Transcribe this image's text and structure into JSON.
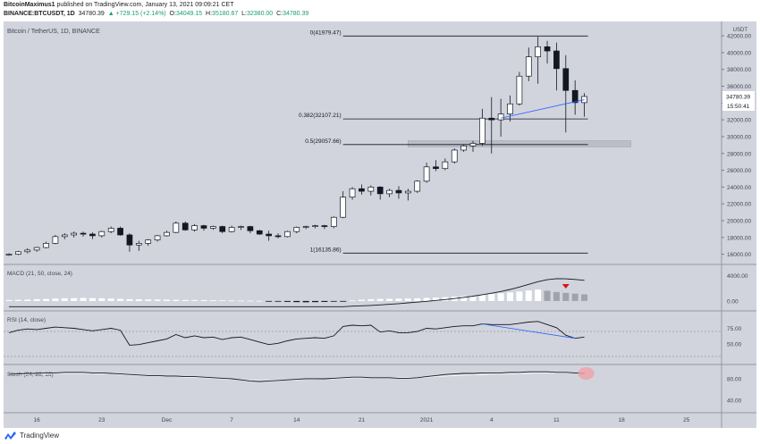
{
  "header": {
    "author": "BitcoinMaximus1",
    "published": "published on TradingView.com, January 13, 2021 09:09:21 CET",
    "symbol": "BINANCE:BTCUSDT, 1D",
    "last": "34780.39",
    "change": "▲ +729.15 (+2.14%)",
    "ohlc": [
      {
        "label": "O:",
        "value": "34049.15"
      },
      {
        "label": "H:",
        "value": "35180.67"
      },
      {
        "label": "L:",
        "value": "32380.00"
      },
      {
        "label": "C:",
        "value": "34780.39"
      }
    ]
  },
  "footer": {
    "brand": "TradingView"
  },
  "colors": {
    "background": "#d1d4dc",
    "accent": "#2962ff",
    "text": "#131722",
    "down_arrow": "#e01010",
    "highlight": "#f0a0a8"
  },
  "chart_data": {
    "type": "candlestick",
    "title": "Bitcoin / TetherUS, 1D, BINANCE",
    "currency": "USDT",
    "price_axis": {
      "range": [
        15000,
        43500
      ],
      "ticks": [
        16000,
        18000,
        20000,
        22000,
        24000,
        26000,
        28000,
        30000,
        32000,
        34000,
        36000,
        38000,
        40000,
        42000
      ],
      "tick_labels": [
        "16000.00",
        "18000.00",
        "20000.00",
        "22000.00",
        "24000.00",
        "26000.00",
        "28000.00",
        "30000.00",
        "32000.00",
        "34000.00",
        "36000.00",
        "38000.00",
        "40000.00",
        "42000.00"
      ],
      "last_price_label": "34780.39",
      "countdown": "15:50:41"
    },
    "x_axis": {
      "labels": [
        "16",
        "23",
        "Dec",
        "7",
        "14",
        "21",
        "2021",
        "4",
        "11",
        "18",
        "25"
      ],
      "label_bars": [
        3,
        10,
        17,
        24,
        31,
        38,
        45,
        52,
        59,
        66,
        73
      ]
    },
    "candles": [
      [
        15900,
        16100,
        15800,
        16000
      ],
      [
        16000,
        16400,
        15900,
        16300
      ],
      [
        16300,
        16700,
        16100,
        16500
      ],
      [
        16500,
        16900,
        16300,
        16800
      ],
      [
        16800,
        17500,
        16700,
        17300
      ],
      [
        17300,
        18300,
        17200,
        18100
      ],
      [
        18100,
        18500,
        17800,
        18300
      ],
      [
        18300,
        18700,
        18000,
        18500
      ],
      [
        18500,
        18700,
        18100,
        18400
      ],
      [
        18400,
        18600,
        17800,
        18200
      ],
      [
        18200,
        18800,
        18000,
        18700
      ],
      [
        18700,
        19300,
        18500,
        19100
      ],
      [
        19100,
        19300,
        18200,
        18300
      ],
      [
        18300,
        18500,
        16300,
        17100
      ],
      [
        17100,
        17600,
        16400,
        17300
      ],
      [
        17300,
        17800,
        17000,
        17700
      ],
      [
        17700,
        18300,
        17500,
        18200
      ],
      [
        18200,
        18800,
        18100,
        18600
      ],
      [
        18600,
        19900,
        18500,
        19700
      ],
      [
        19700,
        19900,
        18800,
        18900
      ],
      [
        18900,
        19600,
        18700,
        19400
      ],
      [
        19400,
        19500,
        18800,
        19100
      ],
      [
        19100,
        19400,
        18900,
        19300
      ],
      [
        19300,
        19400,
        18500,
        18700
      ],
      [
        18700,
        19400,
        18600,
        19200
      ],
      [
        19200,
        19400,
        18900,
        19300
      ],
      [
        19300,
        19400,
        18500,
        18800
      ],
      [
        18800,
        18900,
        18300,
        18400
      ],
      [
        18400,
        18800,
        17600,
        18200
      ],
      [
        18200,
        18500,
        17900,
        18100
      ],
      [
        18100,
        18800,
        18000,
        18700
      ],
      [
        18700,
        19300,
        18500,
        19200
      ],
      [
        19200,
        19400,
        19000,
        19300
      ],
      [
        19300,
        19500,
        19100,
        19400
      ],
      [
        19400,
        19500,
        19000,
        19300
      ],
      [
        19300,
        20500,
        19100,
        20400
      ],
      [
        20400,
        23500,
        20300,
        22800
      ],
      [
        22800,
        24000,
        22500,
        23800
      ],
      [
        23800,
        24300,
        23100,
        23500
      ],
      [
        23500,
        24200,
        23000,
        24000
      ],
      [
        24000,
        24100,
        22500,
        23200
      ],
      [
        23200,
        23800,
        22800,
        23600
      ],
      [
        23600,
        24100,
        22600,
        23300
      ],
      [
        23300,
        23800,
        22400,
        23500
      ],
      [
        23500,
        24800,
        23300,
        24700
      ],
      [
        24700,
        26900,
        24500,
        26400
      ],
      [
        26400,
        27200,
        25900,
        26200
      ],
      [
        26200,
        27400,
        26000,
        27000
      ],
      [
        27000,
        28600,
        26800,
        28400
      ],
      [
        28400,
        29100,
        28200,
        28900
      ],
      [
        28900,
        29500,
        28200,
        29200
      ],
      [
        29200,
        33300,
        28900,
        32200
      ],
      [
        32200,
        34700,
        28000,
        32000
      ],
      [
        32000,
        34500,
        30000,
        32700
      ],
      [
        32700,
        34900,
        31800,
        33900
      ],
      [
        33900,
        37700,
        33700,
        37200
      ],
      [
        37200,
        40600,
        36600,
        39500
      ],
      [
        39500,
        41900,
        36300,
        40700
      ],
      [
        40700,
        41400,
        38700,
        40200
      ],
      [
        40200,
        41200,
        35500,
        38100
      ],
      [
        38100,
        39700,
        30500,
        35500
      ],
      [
        35500,
        36700,
        32600,
        34050
      ],
      [
        34050,
        35180,
        32380,
        34780
      ]
    ],
    "fibonacci": [
      {
        "label": "0(41979.47)",
        "price": 41979.47
      },
      {
        "label": "0.382(32107.21)",
        "price": 32107.21
      },
      {
        "label": "0.5(29057.66)",
        "price": 29057.66
      },
      {
        "label": "1(16135.86)",
        "price": 16135.86
      }
    ],
    "support_zone": [
      28800,
      29500
    ],
    "trendline": [
      {
        "bar": 53,
        "price": 32200
      },
      {
        "bar": 62,
        "price": 34400
      }
    ],
    "macd": {
      "title": "MACD (21, 50, close, 24)",
      "ticks": [
        0,
        4000
      ],
      "tick_labels": [
        "0.00",
        "4000.00"
      ],
      "line": [
        -900,
        -900,
        -900,
        -900,
        -900,
        -900,
        -900,
        -900,
        -900,
        -900,
        -900,
        -900,
        -900,
        -900,
        -900,
        -900,
        -900,
        -900,
        -900,
        -900,
        -900,
        -900,
        -900,
        -900,
        -900,
        -900,
        -900,
        -900,
        -900,
        -900,
        -900,
        -900,
        -900,
        -900,
        -900,
        -900,
        -900,
        -820,
        -760,
        -700,
        -620,
        -520,
        -420,
        -300,
        -180,
        -50,
        80,
        220,
        380,
        560,
        760,
        980,
        1220,
        1500,
        1820,
        2200,
        2620,
        3040,
        3360,
        3520,
        3500,
        3400,
        3250
      ],
      "histogram": [
        150,
        180,
        220,
        280,
        320,
        380,
        420,
        450,
        480,
        450,
        420,
        380,
        330,
        280,
        260,
        240,
        220,
        200,
        180,
        160,
        150,
        140,
        120,
        100,
        80,
        60,
        40,
        20,
        -40,
        -90,
        -140,
        -180,
        -200,
        -180,
        -150,
        -100,
        -40,
        80,
        200,
        280,
        320,
        340,
        360,
        380,
        420,
        480,
        540,
        600,
        680,
        760,
        860,
        980,
        1100,
        1220,
        1360,
        1500,
        1660,
        1800,
        1600,
        1420,
        1280,
        1160,
        1040
      ],
      "signal_arrow": "down"
    },
    "rsi": {
      "title": "RSI (14, close)",
      "ticks": [
        50,
        75
      ],
      "tick_labels": [
        "50.00",
        "75.00"
      ],
      "values": [
        68,
        72,
        74,
        73,
        75,
        77,
        76,
        75,
        73,
        71,
        73,
        75,
        72,
        48,
        49,
        52,
        55,
        58,
        65,
        60,
        63,
        60,
        61,
        57,
        60,
        61,
        57,
        53,
        49,
        51,
        55,
        58,
        59,
        60,
        59,
        63,
        78,
        80,
        79,
        80,
        69,
        71,
        68,
        68,
        70,
        75,
        74,
        76,
        78,
        79,
        79,
        82,
        81,
        81,
        81,
        83,
        85,
        86,
        81,
        76,
        64,
        59,
        61
      ],
      "divergence": [
        {
          "bar": 51,
          "value": 82
        },
        {
          "bar": 61,
          "value": 59
        }
      ]
    },
    "stoch": {
      "title": "Stoch (24, 28, 16)",
      "ticks": [
        40,
        80
      ],
      "tick_labels": [
        "40.00",
        "80.00"
      ],
      "k": [
        88,
        89,
        90,
        90,
        91,
        91,
        92,
        92,
        92,
        91,
        91,
        90,
        89,
        88,
        87,
        86,
        86,
        85,
        85,
        84,
        84,
        83,
        82,
        81,
        80,
        78,
        76,
        75,
        76,
        77,
        78,
        79,
        80,
        80,
        80,
        81,
        82,
        83,
        83,
        82,
        82,
        82,
        81,
        81,
        82,
        84,
        86,
        88,
        89,
        90,
        90,
        91,
        91,
        91,
        92,
        92,
        93,
        93,
        93,
        92,
        92,
        91,
        90
      ],
      "d": [
        87,
        88,
        88,
        89,
        89,
        90,
        90,
        90,
        90,
        90,
        89,
        89,
        88,
        87,
        86,
        85,
        85,
        84,
        84,
        83,
        83,
        82,
        81,
        80,
        79,
        78,
        77,
        77,
        77,
        78,
        78,
        78,
        79,
        79,
        80,
        80,
        81,
        82,
        82,
        82,
        82,
        82,
        82,
        82,
        82,
        83,
        84,
        85,
        86,
        87,
        88,
        88,
        89,
        89,
        89,
        90,
        90,
        91,
        91,
        91,
        91,
        91,
        91
      ],
      "highlight_bar": 62
    }
  }
}
